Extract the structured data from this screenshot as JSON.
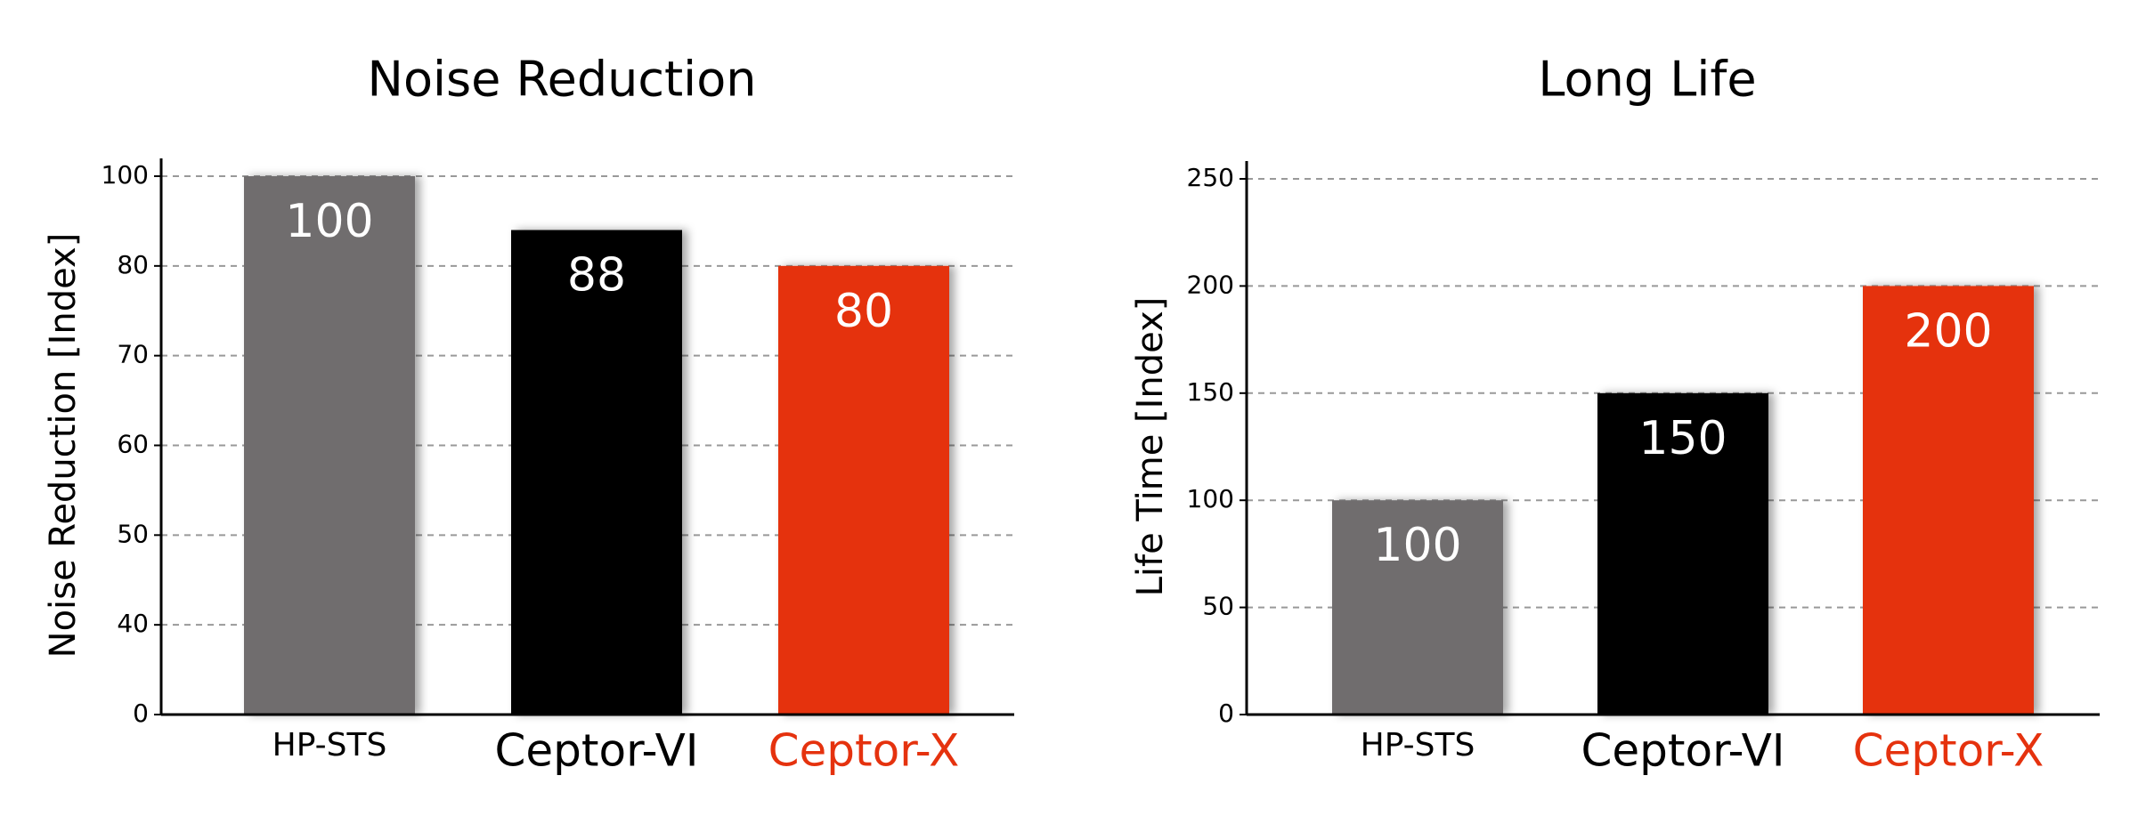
{
  "chart_data": [
    {
      "type": "bar",
      "title": "Noise Reduction",
      "y_label": "Noise Reduction [Index]",
      "categories": [
        "HP-STS",
        "Ceptor-VI",
        "Ceptor-X"
      ],
      "values": [
        100,
        88,
        80
      ],
      "colors": [
        "#6f6d6e",
        "#000000",
        "#e5320e"
      ],
      "label_colors": [
        "#000000",
        "#000000",
        "#e5320e"
      ],
      "ylim": [
        0,
        100
      ],
      "yticks": [
        0,
        40,
        50,
        60,
        70,
        80,
        100
      ],
      "grid": true
    },
    {
      "type": "bar",
      "title": "Long Life",
      "y_label": "Life Time [Index]",
      "categories": [
        "HP-STS",
        "Ceptor-VI",
        "Ceptor-X"
      ],
      "values": [
        100,
        150,
        200
      ],
      "colors": [
        "#6f6d6e",
        "#000000",
        "#e5320e"
      ],
      "label_colors": [
        "#000000",
        "#000000",
        "#e5320e"
      ],
      "ylim": [
        0,
        250
      ],
      "yticks": [
        0,
        50,
        100,
        150,
        200,
        250
      ],
      "grid": true
    }
  ]
}
